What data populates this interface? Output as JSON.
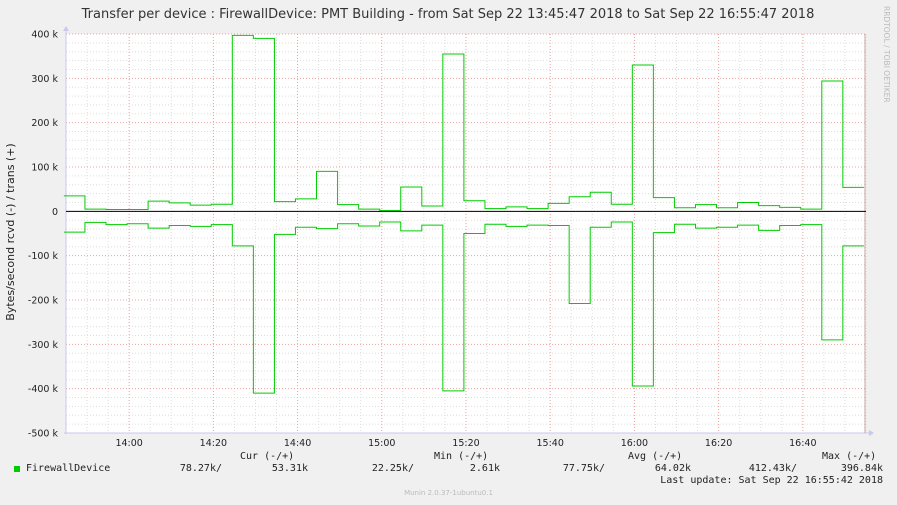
{
  "chart_data": {
    "type": "line",
    "title": "Transfer per device : FirewallDevice: PMT Building - from Sat Sep 22 13:45:47 2018 to Sat Sep 22 16:55:47 2018",
    "ylabel": "Bytes/second rcvd (-) / trans (+)",
    "watermark": "RRDTOOL / TOBI OETIKER",
    "ylim": [
      -500000,
      400000
    ],
    "y_ticks": [
      400000,
      300000,
      200000,
      100000,
      0,
      -100000,
      -200000,
      -300000,
      -400000,
      -500000
    ],
    "y_tick_labels": [
      "400 k",
      "300 k",
      "200 k",
      "100 k",
      "0",
      "-100 k",
      "-200 k",
      "-300 k",
      "-400 k",
      "-500 k"
    ],
    "x_range_minutes": [
      -15,
      175
    ],
    "x_ticks": [
      0,
      20,
      40,
      60,
      80,
      100,
      120,
      140,
      160
    ],
    "x_tick_labels": [
      "14:00",
      "14:20",
      "14:40",
      "15:00",
      "15:20",
      "15:40",
      "16:00",
      "16:20",
      "16:40"
    ],
    "x_step_minutes": [
      -13,
      -8,
      -3,
      2,
      7,
      12,
      17,
      22,
      27,
      32,
      37,
      42,
      47,
      52,
      57,
      62,
      67,
      72,
      77,
      82,
      87,
      92,
      97,
      102,
      107,
      112,
      117,
      122,
      127,
      132,
      137,
      142,
      147,
      152,
      157,
      162,
      167,
      172
    ],
    "grid": true,
    "colors": {
      "series": "#00cc00",
      "zero_line": "#000000",
      "major_grid": "#e8a0a0",
      "minor_grid": "#dddddd",
      "axis": "#c8c8f0"
    },
    "series": [
      {
        "name": "FirewallDevice",
        "values": [
          35000,
          5000,
          4000,
          4000,
          23000,
          19000,
          14000,
          16000,
          397000,
          390000,
          22000,
          28000,
          90000,
          15000,
          5000,
          2000,
          55000,
          12000,
          355000,
          24000,
          6000,
          10000,
          6000,
          18000,
          33000,
          43000,
          16000,
          330000,
          31000,
          8000,
          15000,
          8000,
          20000,
          13000,
          9000,
          5000,
          294000,
          54000
        ]
      },
      {
        "name": "FirewallDevice",
        "values": [
          -47000,
          -25000,
          -30000,
          -28000,
          -38000,
          -32000,
          -34000,
          -30000,
          -78000,
          -410000,
          -52000,
          -36000,
          -39000,
          -28000,
          -33000,
          -24000,
          -44000,
          -31000,
          -405000,
          -50000,
          -29000,
          -34000,
          -31000,
          -32000,
          -208000,
          -36000,
          -24000,
          -394000,
          -48000,
          -29000,
          -38000,
          -36000,
          -31000,
          -43000,
          -32000,
          -30000,
          -290000,
          -78000
        ]
      }
    ]
  },
  "legend": {
    "color": "#00cc00",
    "headers": {
      "cur": "Cur (-/+)",
      "min": "Min (-/+)",
      "avg": "Avg (-/+)",
      "max": "Max (-/+)"
    },
    "row": {
      "label": "FirewallDevice",
      "cur_minus": "78.27k/",
      "cur_plus": "53.31k",
      "min_minus": "22.25k/",
      "min_plus": "2.61k",
      "avg_minus": "77.75k/",
      "avg_plus": "64.02k",
      "max_minus": "412.43k/",
      "max_plus": "396.84k"
    },
    "last_update": "Last update: Sat Sep 22 16:55:42 2018"
  },
  "footer": "Munin 2.0.37-1ubuntu0.1"
}
